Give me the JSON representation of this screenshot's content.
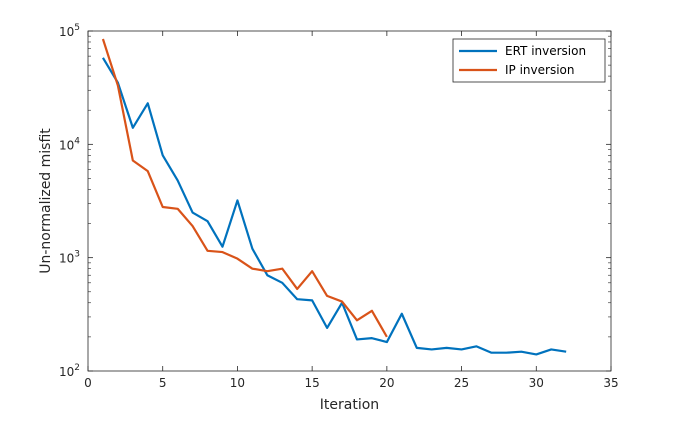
{
  "chart_data": {
    "type": "line",
    "title": "",
    "xlabel": "Iteration",
    "ylabel": "Un-normalized misfit",
    "xlim": [
      0,
      35
    ],
    "ylim": [
      100,
      100000
    ],
    "yscale": "log",
    "grid": false,
    "legend_position": "top-right",
    "x_ticks": [
      "0",
      "5",
      "10",
      "15",
      "20",
      "25",
      "30",
      "35"
    ],
    "x_tick_values": [
      0,
      5,
      10,
      15,
      20,
      25,
      30,
      35
    ],
    "y_ticks": [
      {
        "base": "10",
        "exp": "2",
        "value": 100
      },
      {
        "base": "10",
        "exp": "3",
        "value": 1000
      },
      {
        "base": "10",
        "exp": "4",
        "value": 10000
      },
      {
        "base": "10",
        "exp": "5",
        "value": 100000
      }
    ],
    "series": [
      {
        "name": "ERT inversion",
        "color": "#0072BD",
        "x": [
          1,
          2,
          3,
          4,
          5,
          6,
          7,
          8,
          9,
          10,
          11,
          12,
          13,
          14,
          15,
          16,
          17,
          18,
          19,
          20,
          21,
          22,
          23,
          24,
          25,
          26,
          27,
          28,
          29,
          30,
          31,
          32
        ],
        "values": [
          58000,
          35000,
          14000,
          23000,
          8000,
          4800,
          2500,
          2100,
          1250,
          3200,
          1200,
          700,
          600,
          430,
          420,
          240,
          400,
          190,
          195,
          180,
          320,
          160,
          155,
          160,
          155,
          165,
          145,
          145,
          148,
          140,
          155,
          148
        ]
      },
      {
        "name": "IP inversion",
        "color": "#D95319",
        "x": [
          1,
          2,
          3,
          4,
          5,
          6,
          7,
          8,
          9,
          10,
          11,
          12,
          13,
          14,
          15,
          16,
          17,
          18,
          19,
          20
        ],
        "values": [
          85000,
          33000,
          7200,
          5800,
          2800,
          2700,
          1900,
          1150,
          1120,
          980,
          800,
          760,
          800,
          530,
          760,
          460,
          410,
          280,
          340,
          200
        ]
      }
    ]
  }
}
